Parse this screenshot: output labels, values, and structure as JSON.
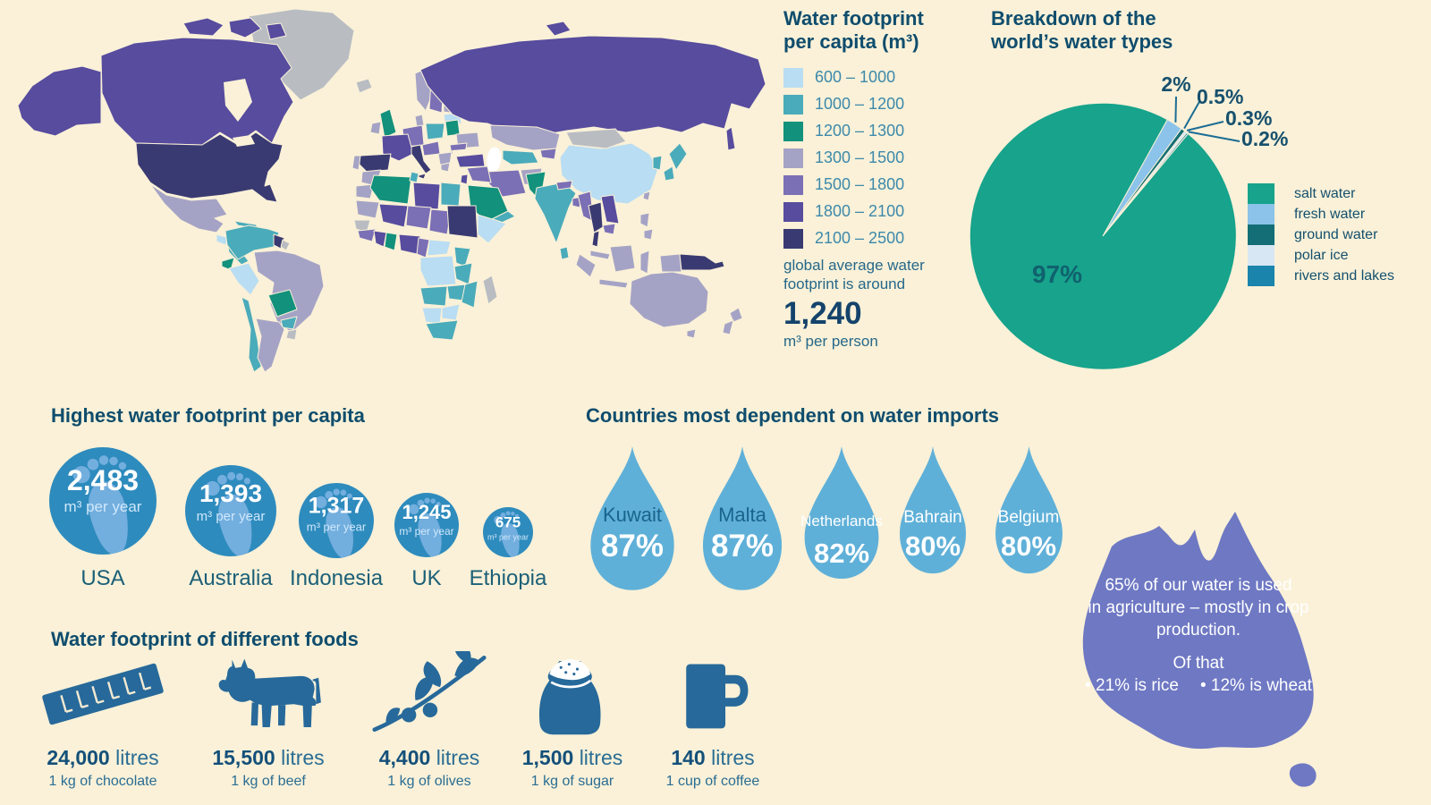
{
  "palette": {
    "background": "#faf1d8",
    "heading_text": "#0f4d6d",
    "legend_label_text": "#3d89aa",
    "note_text": "#26688a",
    "value_text": "#14436b",
    "map_no_data": "#b9bdc2",
    "circle_blue": "#2e8bbd",
    "footprint_light": "#72aede",
    "drop_blue": "#5fb0d8",
    "drop_name_dark": "#19648c",
    "australia_purple": "#6e78c3",
    "food_steel": "#27699a",
    "leader_line": "#1b6d94",
    "pie_label_text": "#16506e",
    "pie_center_text": "#10616e",
    "water_body": "#ffffff"
  },
  "map_legend": {
    "title_lines": [
      "Water footprint",
      "per capita (m³)"
    ],
    "note_lines": [
      "global average water",
      "footprint is around"
    ],
    "average_value": "1,240",
    "average_unit": "m³ per person"
  },
  "pie": {
    "title_lines": [
      "Breakdown of the",
      "world’s water types"
    ]
  },
  "chart_data": [
    {
      "type": "choropleth-map",
      "title": "Water footprint per capita (m³)",
      "unit": "m³",
      "bins": [
        {
          "range": "600 – 1000",
          "color": "#b9ddf2"
        },
        {
          "range": "1000 – 1200",
          "color": "#4aabba"
        },
        {
          "range": "1200 – 1300",
          "color": "#12917c"
        },
        {
          "range": "1300 – 1500",
          "color": "#a5a3c5"
        },
        {
          "range": "1500 – 1800",
          "color": "#7b70b5"
        },
        {
          "range": "1800 – 2100",
          "color": "#574c9e"
        },
        {
          "range": "2100 – 2500",
          "color": "#3a3a72"
        }
      ],
      "no_data_color": "#b9bdc2",
      "note": "global average water footprint is around 1,240 m³ per person"
    },
    {
      "type": "pie",
      "title": "Breakdown of the world’s water types",
      "labels": [
        "salt water",
        "fresh water",
        "ground water",
        "polar ice",
        "rivers and lakes"
      ],
      "values": [
        97,
        2,
        0.5,
        0.3,
        0.2
      ],
      "value_labels": [
        "97%",
        "2%",
        "0.5%",
        "0.3%",
        "0.2%"
      ],
      "colors": [
        "#17a38c",
        "#8cc3ea",
        "#136f75",
        "#d8e7f4",
        "#1b84ad"
      ],
      "legend_position": "right"
    },
    {
      "type": "proportional-circles",
      "title": "Highest water footprint per capita",
      "categories": [
        "USA",
        "Australia",
        "Indonesia",
        "UK",
        "Ethiopia"
      ],
      "values": [
        2483,
        1393,
        1317,
        1245,
        675
      ],
      "value_labels": [
        "2,483",
        "1,393",
        "1,317",
        "1,245",
        "675"
      ],
      "unit": "m³ per year"
    },
    {
      "type": "drop-pictogram",
      "title": "Countries most dependent on water imports",
      "categories": [
        "Kuwait",
        "Malta",
        "Netherlands",
        "Bahrain",
        "Belgium"
      ],
      "values": [
        87,
        87,
        82,
        80,
        80
      ],
      "value_labels": [
        "87%",
        "87%",
        "82%",
        "80%",
        "80%"
      ]
    },
    {
      "type": "icon-pictogram",
      "title": "Water footprint of different foods",
      "categories": [
        "1 kg of chocolate",
        "1 kg of beef",
        "1 kg of olives",
        "1 kg of sugar",
        "1 cup of coffee"
      ],
      "values": [
        24000,
        15500,
        4400,
        1500,
        140
      ],
      "value_labels": [
        "24,000",
        "15,500",
        "4,400",
        "1,500",
        "140"
      ],
      "unit": "litres",
      "icons": [
        "chocolate-bar-icon",
        "cow-icon",
        "olive-branch-icon",
        "sugar-sack-icon",
        "coffee-mug-icon"
      ]
    },
    {
      "type": "annotation",
      "shape": "australia-map",
      "lines": [
        "65% of our water is used",
        "in agriculture – mostly in crop",
        "production."
      ],
      "subtitle": "Of that",
      "bullets": [
        "• 21% is rice",
        "• 12% is wheat"
      ]
    }
  ]
}
